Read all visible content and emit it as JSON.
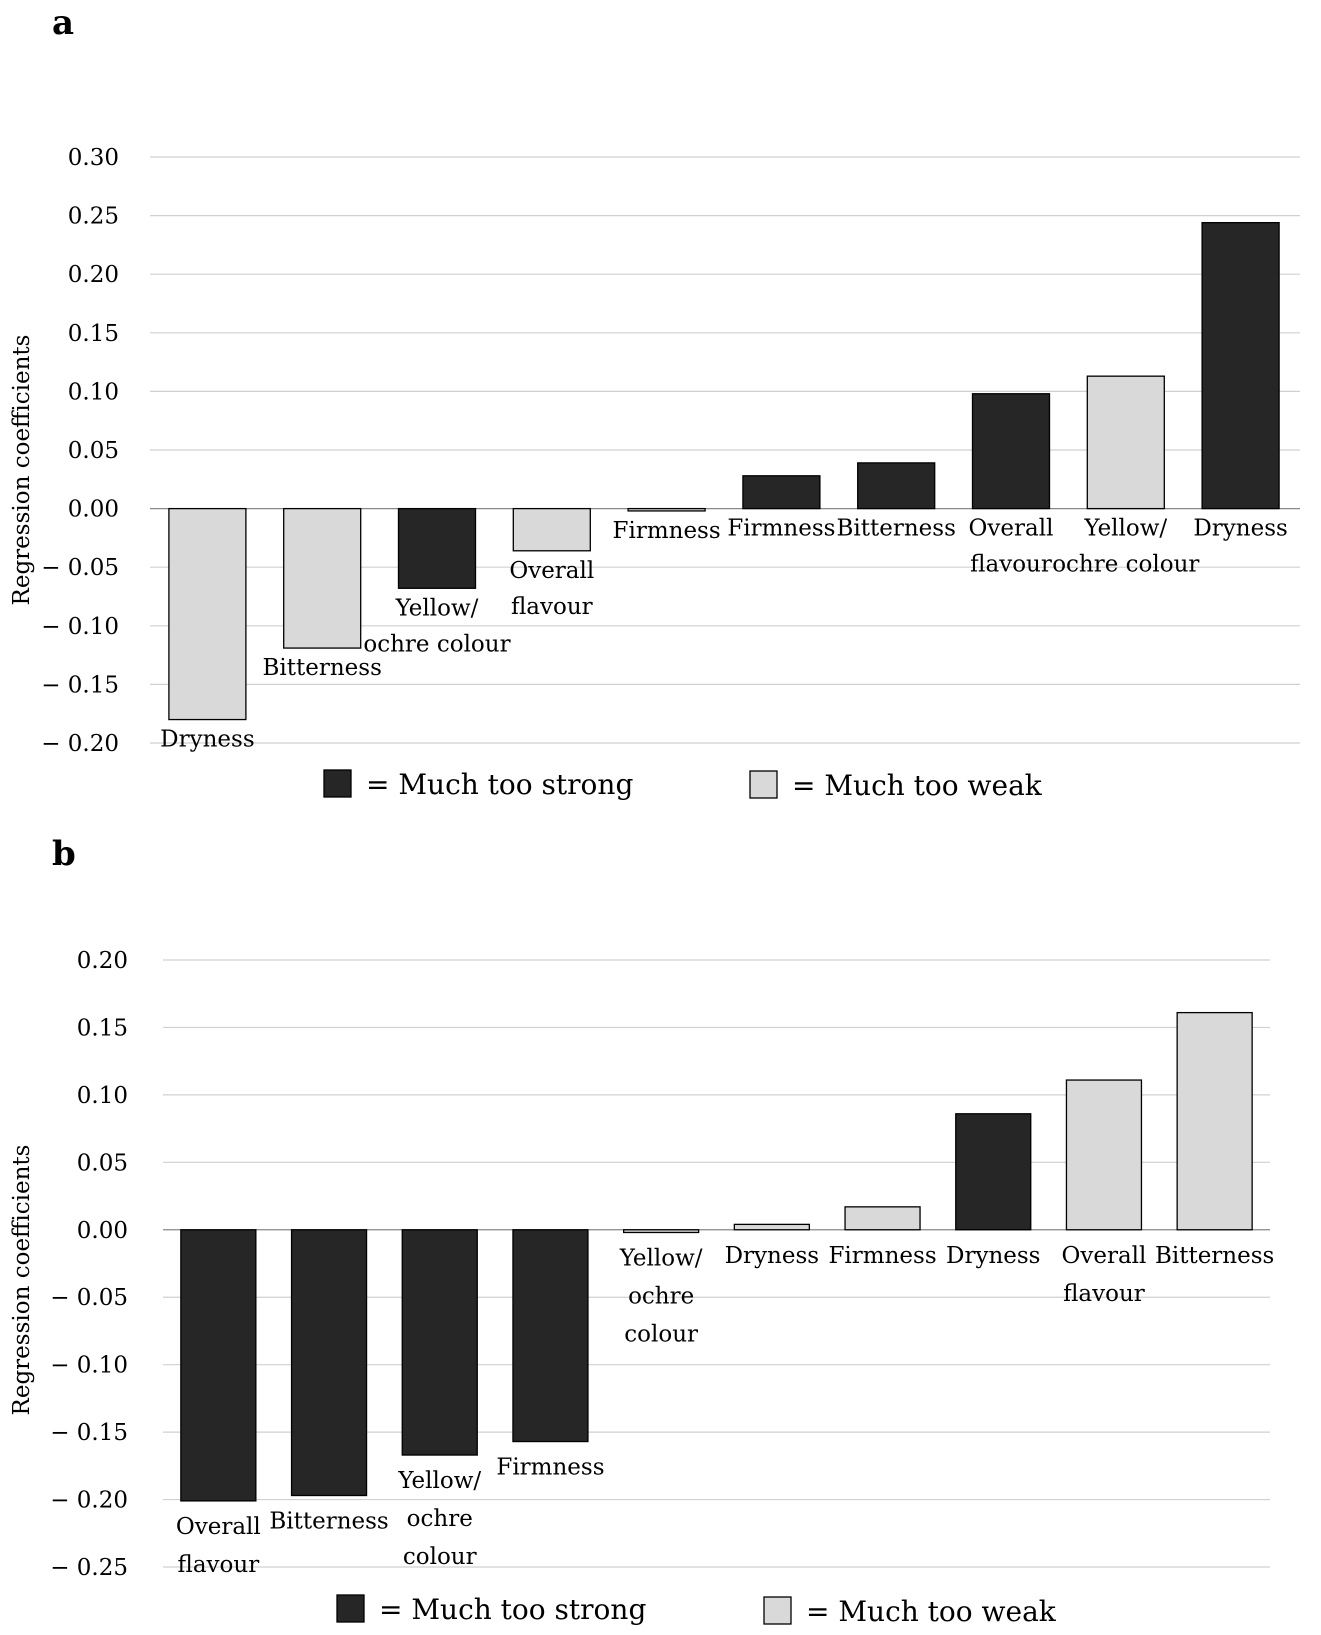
{
  "colors": {
    "strong": "#262626",
    "weak": "#d9d9d9",
    "edge": "#000000"
  },
  "legend": {
    "strong_label": "= Much too strong",
    "weak_label": "= Much too weak"
  },
  "chart_data": [
    {
      "panel": "a",
      "type": "bar",
      "ylabel": "Regression coefficients",
      "ylim": [
        -0.2,
        0.3
      ],
      "yticks": [
        "0.30",
        "0.25",
        "0.20",
        "0.15",
        "0.10",
        "0.05",
        "0.00",
        "− 0.05",
        "− 0.10",
        "− 0.15",
        "− 0.20"
      ],
      "grid": true,
      "legend_position": "bottom",
      "bars": [
        {
          "label": [
            "Dryness"
          ],
          "value": -0.18,
          "group": "weak"
        },
        {
          "label": [
            "Bitterness"
          ],
          "value": -0.119,
          "group": "weak"
        },
        {
          "label": [
            "Yellow/",
            "ochre colour"
          ],
          "value": -0.068,
          "group": "strong"
        },
        {
          "label": [
            "Overall",
            "flavour"
          ],
          "value": -0.036,
          "group": "weak"
        },
        {
          "label": [
            "Firmness"
          ],
          "value": -0.002,
          "group": "weak"
        },
        {
          "label": [
            "Firmness"
          ],
          "value": 0.028,
          "group": "strong"
        },
        {
          "label": [
            "Bitterness"
          ],
          "value": 0.039,
          "group": "strong"
        },
        {
          "label": [
            "Overall",
            "flavour"
          ],
          "value": 0.098,
          "group": "strong"
        },
        {
          "label": [
            "Yellow/",
            "ochre colour"
          ],
          "value": 0.113,
          "group": "weak"
        },
        {
          "label": [
            "Dryness"
          ],
          "value": 0.244,
          "group": "strong"
        }
      ]
    },
    {
      "panel": "b",
      "type": "bar",
      "ylabel": "Regression coefficients",
      "ylim": [
        -0.25,
        0.2
      ],
      "yticks": [
        "0.20",
        "0.15",
        "0.10",
        "0.05",
        "0.00",
        "− 0.05",
        "− 0.10",
        "− 0.15",
        "− 0.20",
        "− 0.25"
      ],
      "grid": true,
      "legend_position": "bottom",
      "bars": [
        {
          "label": [
            "Overall",
            "flavour"
          ],
          "value": -0.201,
          "group": "strong"
        },
        {
          "label": [
            "Bitterness"
          ],
          "value": -0.197,
          "group": "strong"
        },
        {
          "label": [
            "Yellow/",
            "ochre",
            "colour"
          ],
          "value": -0.167,
          "group": "strong"
        },
        {
          "label": [
            "Firmness"
          ],
          "value": -0.157,
          "group": "strong"
        },
        {
          "label": [
            "Yellow/",
            "ochre",
            "colour"
          ],
          "value": -0.002,
          "group": "weak"
        },
        {
          "label": [
            "Dryness"
          ],
          "value": 0.004,
          "group": "weak"
        },
        {
          "label": [
            "Firmness"
          ],
          "value": 0.017,
          "group": "weak"
        },
        {
          "label": [
            "Dryness"
          ],
          "value": 0.086,
          "group": "strong"
        },
        {
          "label": [
            "Overall",
            "flavour"
          ],
          "value": 0.111,
          "group": "weak"
        },
        {
          "label": [
            "Bitterness"
          ],
          "value": 0.161,
          "group": "weak"
        }
      ]
    }
  ]
}
